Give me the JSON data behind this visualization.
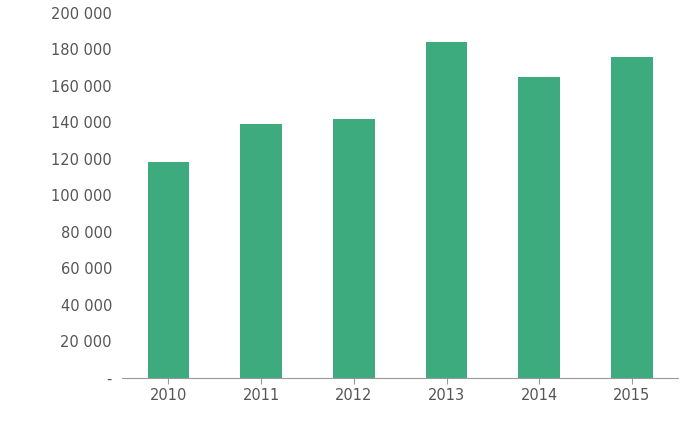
{
  "years": [
    "2010",
    "2011",
    "2012",
    "2013",
    "2014",
    "2015"
  ],
  "values": [
    118000,
    139000,
    142000,
    184000,
    165000,
    176000
  ],
  "bar_color": "#3dab7e",
  "ylim": [
    0,
    200000
  ],
  "yticks": [
    0,
    20000,
    40000,
    60000,
    80000,
    100000,
    120000,
    140000,
    160000,
    180000,
    200000
  ],
  "background_color": "#ffffff",
  "bar_width": 0.45,
  "tick_color": "#999999",
  "label_color": "#555555",
  "font_size": 10.5
}
